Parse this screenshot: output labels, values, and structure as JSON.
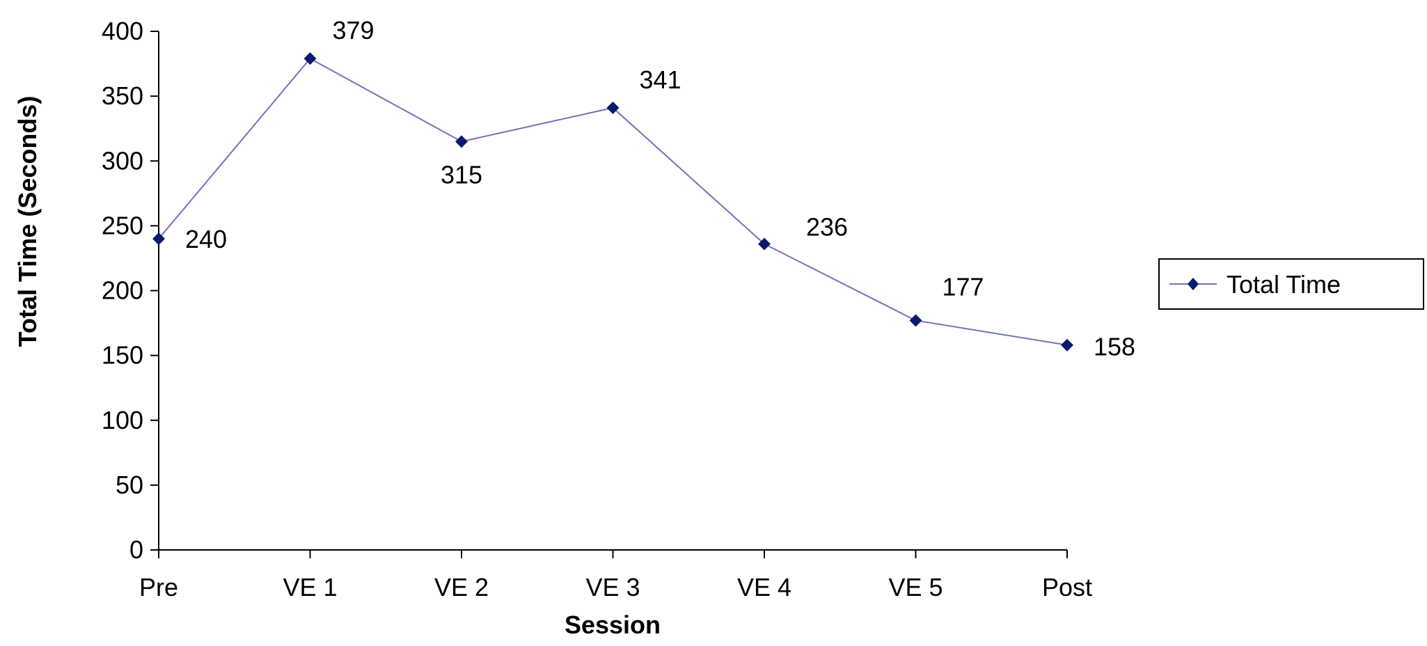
{
  "chart_data": {
    "type": "line",
    "categories": [
      "Pre",
      "VE 1",
      "VE 2",
      "VE 3",
      "VE 4",
      "VE 5",
      "Post"
    ],
    "series": [
      {
        "name": "Total Time",
        "values": [
          240,
          379,
          315,
          341,
          236,
          177,
          158
        ]
      }
    ],
    "data_labels": [
      "240",
      "379",
      "315",
      "341",
      "236",
      "177",
      "158"
    ],
    "xlabel": "Session",
    "ylabel": "Total Time (Seconds)",
    "ylim": [
      0,
      400
    ],
    "yticks": [
      0,
      50,
      100,
      150,
      200,
      250,
      300,
      350,
      400
    ],
    "grid": false,
    "legend": "right",
    "colors": {
      "series": "#0a1a6e",
      "line": "#6f73b6",
      "axis": "#000000"
    }
  }
}
